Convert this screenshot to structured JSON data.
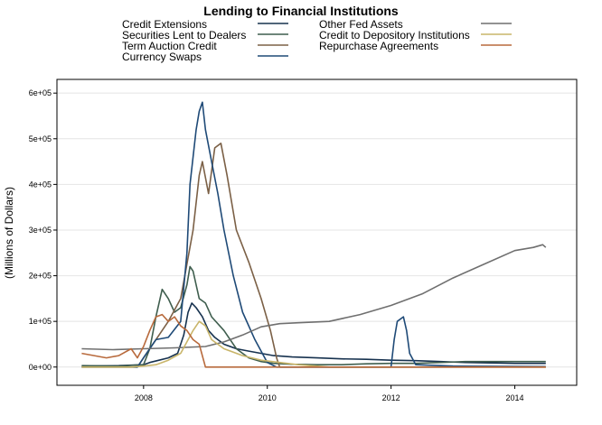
{
  "chart_data": {
    "type": "line",
    "title": "Lending to Financial Institutions",
    "xlabel": "",
    "ylabel": "(Millions of Dollars)",
    "xlim": [
      2006.6,
      2015.0
    ],
    "ylim": [
      -40000,
      630000
    ],
    "x_ticks": [
      2008,
      2010,
      2012,
      2014
    ],
    "x_tick_labels": [
      "2008",
      "2010",
      "2012",
      "2014"
    ],
    "y_ticks": [
      0,
      100000,
      200000,
      300000,
      400000,
      500000,
      600000
    ],
    "y_tick_labels": [
      "0e+00",
      "1e+05",
      "2e+05",
      "3e+05",
      "4e+05",
      "5e+05",
      "6e+05"
    ],
    "grid": "horizontal",
    "legend_position": "top",
    "series": [
      {
        "name": "Credit Extensions",
        "color": "#17324f",
        "x": [
          2007.0,
          2007.6,
          2008.0,
          2008.1,
          2008.25,
          2008.4,
          2008.55,
          2008.65,
          2008.72,
          2008.78,
          2008.85,
          2008.95,
          2009.05,
          2009.15,
          2009.3,
          2009.5,
          2009.7,
          2009.9,
          2010.1,
          2010.4,
          2010.8,
          2011.2,
          2011.6,
          2012.0,
          2012.4,
          2012.8,
          2013.2,
          2013.6,
          2014.0,
          2014.5
        ],
        "y": [
          2000,
          3000,
          5000,
          10000,
          15000,
          20000,
          30000,
          70000,
          120000,
          140000,
          130000,
          110000,
          80000,
          65000,
          50000,
          40000,
          35000,
          30000,
          25000,
          22000,
          20000,
          18000,
          17000,
          15000,
          14000,
          12000,
          10000,
          9000,
          8000,
          8000
        ]
      },
      {
        "name": "Securities Lent to Dealers",
        "color": "#3f5e4e",
        "x": [
          2007.0,
          2007.6,
          2008.0,
          2008.1,
          2008.2,
          2008.3,
          2008.4,
          2008.5,
          2008.6,
          2008.7,
          2008.75,
          2008.8,
          2008.9,
          2009.0,
          2009.1,
          2009.3,
          2009.5,
          2009.7,
          2009.9,
          2010.1,
          2010.4,
          2010.8,
          2011.2,
          2011.6,
          2012.0,
          2012.4,
          2012.8,
          2013.2,
          2013.6,
          2014.0,
          2014.5
        ],
        "y": [
          3000,
          2000,
          5000,
          40000,
          110000,
          170000,
          150000,
          120000,
          130000,
          180000,
          220000,
          210000,
          150000,
          140000,
          110000,
          80000,
          40000,
          20000,
          12000,
          8000,
          6000,
          5000,
          5000,
          7000,
          8000,
          8000,
          10000,
          12000,
          12000,
          12000,
          12000
        ]
      },
      {
        "name": "Term Auction Credit",
        "color": "#7b6046",
        "x": [
          2007.0,
          2007.9,
          2008.0,
          2008.2,
          2008.4,
          2008.6,
          2008.8,
          2008.9,
          2008.95,
          2009.05,
          2009.15,
          2009.25,
          2009.35,
          2009.5,
          2009.7,
          2009.9,
          2010.05,
          2010.15,
          2010.2,
          2011.0,
          2012.0,
          2013.0,
          2014.5
        ],
        "y": [
          0,
          0,
          20000,
          60000,
          100000,
          150000,
          300000,
          420000,
          450000,
          380000,
          480000,
          490000,
          420000,
          300000,
          230000,
          150000,
          80000,
          20000,
          0,
          0,
          0,
          0,
          0
        ]
      },
      {
        "name": "Currency Swaps",
        "color": "#1f4a77",
        "x": [
          2007.0,
          2007.9,
          2008.0,
          2008.2,
          2008.4,
          2008.6,
          2008.7,
          2008.75,
          2008.85,
          2008.9,
          2008.95,
          2009.0,
          2009.1,
          2009.2,
          2009.3,
          2009.45,
          2009.6,
          2009.8,
          2010.0,
          2010.15,
          2010.3,
          2011.0,
          2012.0,
          2012.05,
          2012.1,
          2012.2,
          2012.25,
          2012.3,
          2012.4,
          2013.0,
          2014.5
        ],
        "y": [
          0,
          0,
          20000,
          60000,
          65000,
          100000,
          250000,
          400000,
          520000,
          560000,
          580000,
          520000,
          450000,
          380000,
          300000,
          200000,
          120000,
          60000,
          10000,
          0,
          0,
          0,
          0,
          60000,
          100000,
          110000,
          80000,
          30000,
          5000,
          2000,
          1000
        ]
      },
      {
        "name": "Other Fed Assets",
        "color": "#6f6f6f",
        "x": [
          2007.0,
          2007.5,
          2008.0,
          2008.5,
          2009.0,
          2009.3,
          2009.6,
          2009.9,
          2010.2,
          2010.5,
          2011.0,
          2011.5,
          2012.0,
          2012.5,
          2013.0,
          2013.5,
          2014.0,
          2014.3,
          2014.45,
          2014.5
        ],
        "y": [
          40000,
          38000,
          40000,
          42000,
          45000,
          55000,
          70000,
          88000,
          95000,
          97000,
          100000,
          115000,
          135000,
          160000,
          195000,
          225000,
          255000,
          262000,
          268000,
          262000
        ]
      },
      {
        "name": "Credit to Depository Institutions",
        "color": "#c9b56a",
        "x": [
          2007.0,
          2007.8,
          2008.0,
          2008.2,
          2008.4,
          2008.6,
          2008.8,
          2008.9,
          2009.0,
          2009.1,
          2009.3,
          2009.6,
          2009.9,
          2010.2,
          2010.5,
          2011.0,
          2014.5
        ],
        "y": [
          0,
          0,
          2000,
          5000,
          15000,
          30000,
          80000,
          100000,
          90000,
          60000,
          40000,
          25000,
          15000,
          10000,
          5000,
          0,
          0
        ]
      },
      {
        "name": "Repurchase Agreements",
        "color": "#b86a3c",
        "x": [
          2007.0,
          2007.2,
          2007.4,
          2007.6,
          2007.8,
          2007.9,
          2008.0,
          2008.1,
          2008.2,
          2008.3,
          2008.4,
          2008.5,
          2008.6,
          2008.7,
          2008.8,
          2008.9,
          2009.0,
          2009.2,
          2010.0,
          2011.0,
          2014.5
        ],
        "y": [
          30000,
          25000,
          20000,
          25000,
          40000,
          20000,
          45000,
          80000,
          110000,
          115000,
          100000,
          110000,
          90000,
          80000,
          60000,
          50000,
          0,
          0,
          0,
          0,
          0
        ]
      }
    ]
  }
}
